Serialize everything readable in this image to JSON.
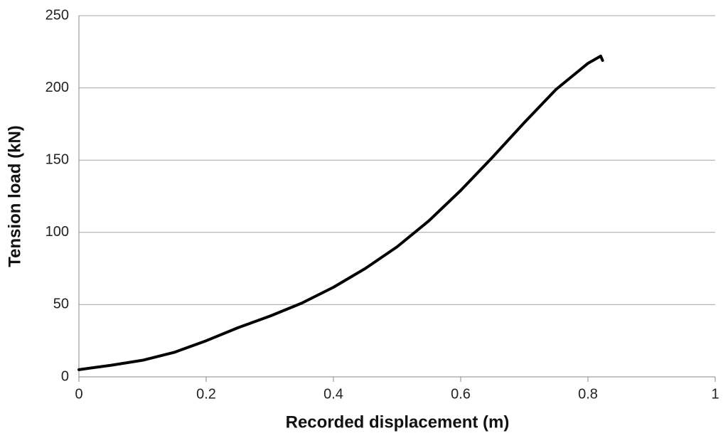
{
  "chart_data": {
    "type": "line",
    "x_label": "Recorded displacement (m)",
    "y_label": "Tension load (kN)",
    "x": [
      0,
      0.05,
      0.1,
      0.15,
      0.2,
      0.25,
      0.3,
      0.35,
      0.4,
      0.45,
      0.5,
      0.55,
      0.6,
      0.65,
      0.7,
      0.75,
      0.8,
      0.82,
      0.823
    ],
    "values": [
      5,
      8,
      11.5,
      17,
      25,
      34,
      42,
      51,
      62,
      75,
      90,
      108,
      129,
      152,
      176,
      199,
      217,
      222,
      219
    ],
    "color": "#000000",
    "xlim": [
      0,
      1
    ],
    "xticks": [
      0,
      0.2,
      0.4,
      0.6,
      0.8,
      1
    ],
    "ylim": [
      0,
      250
    ],
    "yticks": [
      0,
      50,
      100,
      150,
      200,
      250
    ],
    "grid": true
  }
}
